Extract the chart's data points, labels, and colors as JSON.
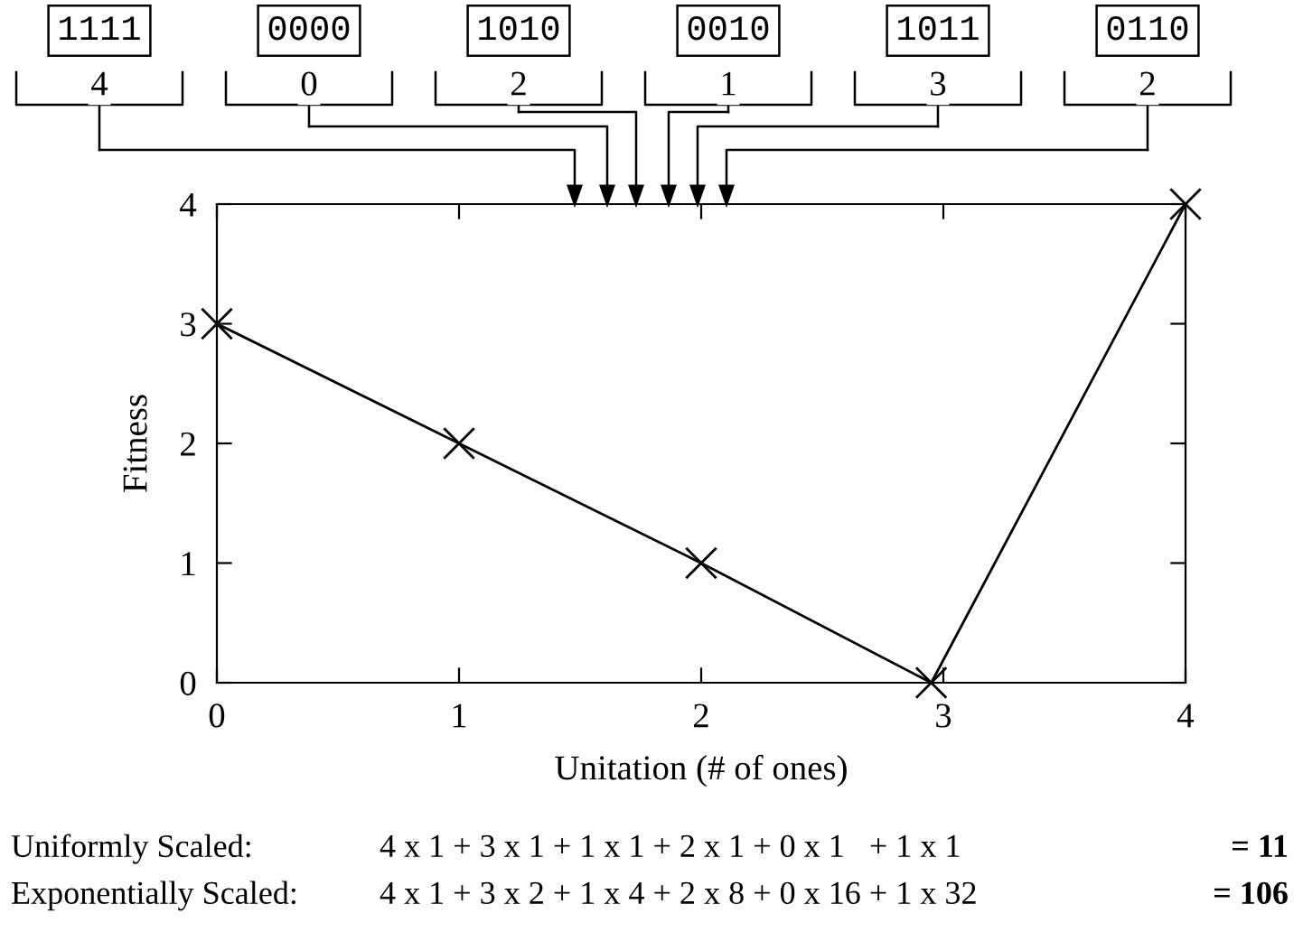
{
  "chart_data": {
    "type": "line",
    "xlabel": "Unitation (# of ones)",
    "ylabel": "Fitness",
    "x": [
      0,
      1,
      2,
      2.95,
      4
    ],
    "series": [
      {
        "color": "#000000",
        "values": [
          3,
          2,
          1,
          0,
          4
        ]
      }
    ],
    "marker": "cross",
    "line_style": "solid",
    "grid": false,
    "legend": false,
    "xlim": [
      0,
      4
    ],
    "ylim": [
      0,
      4
    ],
    "xticks": [
      0,
      1,
      2,
      3,
      4
    ],
    "yticks": [
      0,
      1,
      2,
      3,
      4
    ],
    "annotations": [
      "1111",
      "0000",
      "1010",
      "0010",
      "1011",
      "0110",
      "4",
      "0",
      "2",
      "1",
      "3",
      "2",
      "Uniformly Scaled:",
      "4 x 1 + 3 x 1 + 1 x 1 + 2 x 1 + 0 x 1   + 1 x 1",
      "= 11",
      "Exponentially Scaled:",
      "4 x 1 + 3 x 2 + 1 x 4 + 2 x 8 + 0 x 16 + 1 x 32",
      "= 106"
    ]
  }
}
